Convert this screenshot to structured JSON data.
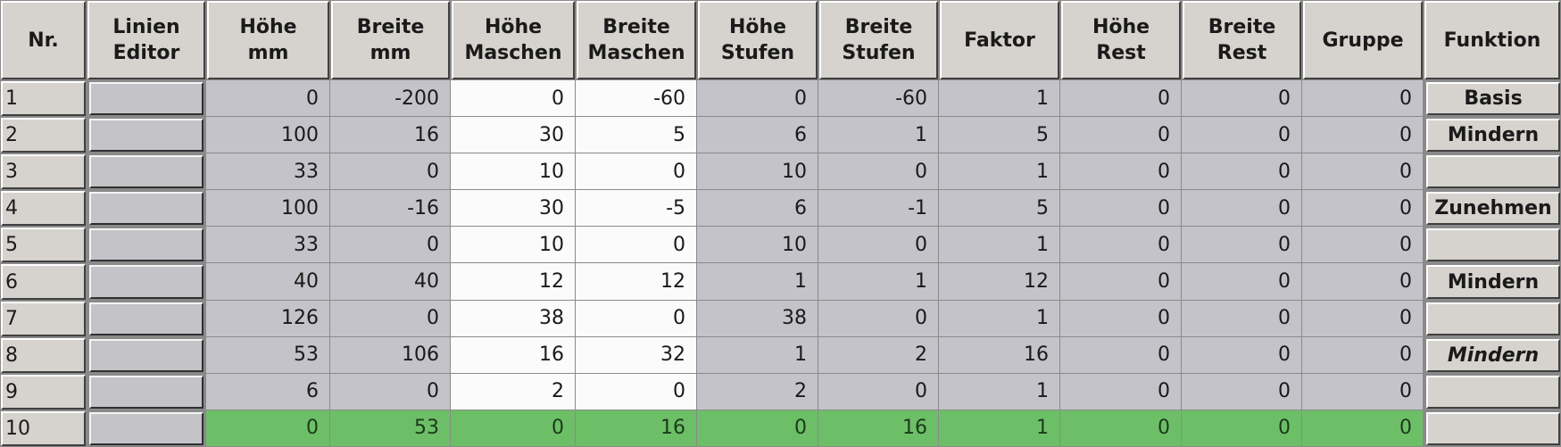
{
  "colors": {
    "header": "#d6d3ce",
    "cell": "#c3c3c9",
    "editable": "#fbfbfb",
    "highlight": "#6dbf67"
  },
  "headers": [
    "Nr.",
    "Linien\nEditor",
    "Höhe\nmm",
    "Breite\nmm",
    "Höhe\nMaschen",
    "Breite\nMaschen",
    "Höhe\nStufen",
    "Breite\nStufen",
    "Faktor",
    "Höhe\nRest",
    "Breite\nRest",
    "Gruppe",
    "Funktion"
  ],
  "rows": [
    {
      "nr": "1",
      "values": [
        "0",
        "-200",
        "0",
        "-60",
        "0",
        "-60",
        "1",
        "0",
        "0",
        "0"
      ],
      "funktion": "Basis"
    },
    {
      "nr": "2",
      "values": [
        "100",
        "16",
        "30",
        "5",
        "6",
        "1",
        "5",
        "0",
        "0",
        "0"
      ],
      "funktion": "Mindern"
    },
    {
      "nr": "3",
      "values": [
        "33",
        "0",
        "10",
        "0",
        "10",
        "0",
        "1",
        "0",
        "0",
        "0"
      ],
      "funktion": ""
    },
    {
      "nr": "4",
      "values": [
        "100",
        "-16",
        "30",
        "-5",
        "6",
        "-1",
        "5",
        "0",
        "0",
        "0"
      ],
      "funktion": "Zunehmen"
    },
    {
      "nr": "5",
      "values": [
        "33",
        "0",
        "10",
        "0",
        "10",
        "0",
        "1",
        "0",
        "0",
        "0"
      ],
      "funktion": ""
    },
    {
      "nr": "6",
      "values": [
        "40",
        "40",
        "12",
        "12",
        "1",
        "1",
        "12",
        "0",
        "0",
        "0"
      ],
      "funktion": "Mindern"
    },
    {
      "nr": "7",
      "values": [
        "126",
        "0",
        "38",
        "0",
        "38",
        "0",
        "1",
        "0",
        "0",
        "0"
      ],
      "funktion": ""
    },
    {
      "nr": "8",
      "values": [
        "53",
        "106",
        "16",
        "32",
        "1",
        "2",
        "16",
        "0",
        "0",
        "0"
      ],
      "funktion": "Mindern",
      "funktion_italic": true
    },
    {
      "nr": "9",
      "values": [
        "6",
        "0",
        "2",
        "0",
        "2",
        "0",
        "1",
        "0",
        "0",
        "0"
      ],
      "funktion": ""
    },
    {
      "nr": "10",
      "values": [
        "0",
        "53",
        "0",
        "16",
        "0",
        "16",
        "1",
        "0",
        "0",
        "0"
      ],
      "funktion": "",
      "highlighted": true
    }
  ]
}
